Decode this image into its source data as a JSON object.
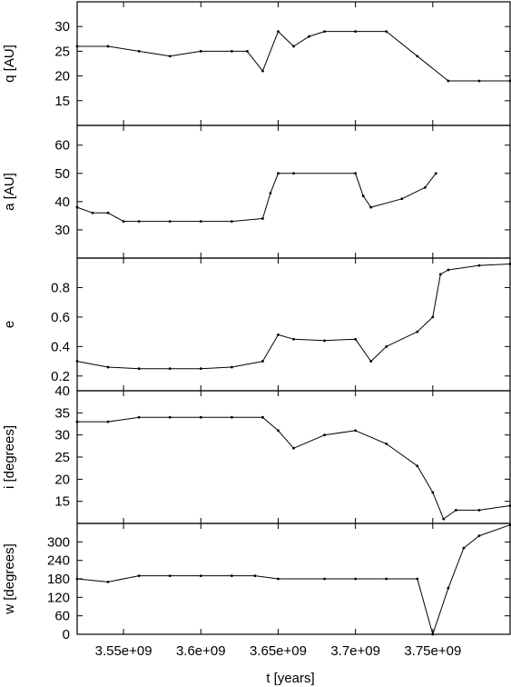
{
  "chart_data": {
    "type": "line",
    "xlabel": "t [years]",
    "xlim": [
      3520000000.0,
      3800000000.0
    ],
    "xticks": [
      3550000000.0,
      3600000000.0,
      3650000000.0,
      3700000000.0,
      3750000000.0
    ],
    "xtick_labels": [
      "3.55e+09",
      "3.6e+09",
      "3.65e+09",
      "3.7e+09",
      "3.75e+09"
    ],
    "panels": [
      {
        "key": "q",
        "ylabel": "q [AU]",
        "ylim": [
          10,
          35
        ],
        "yticks": [
          15,
          20,
          25,
          30
        ],
        "x": [
          3520000000.0,
          3540000000.0,
          3560000000.0,
          3580000000.0,
          3600000000.0,
          3620000000.0,
          3630000000.0,
          3640000000.0,
          3650000000.0,
          3660000000.0,
          3670000000.0,
          3680000000.0,
          3700000000.0,
          3720000000.0,
          3740000000.0,
          3760000000.0,
          3780000000.0,
          3800000000.0
        ],
        "y": [
          26,
          26,
          25,
          24,
          25,
          25,
          25,
          21,
          29,
          26,
          28,
          29,
          29,
          29,
          24,
          19,
          19,
          19
        ]
      },
      {
        "key": "a",
        "ylabel": "a [AU]",
        "ylim": [
          20,
          67
        ],
        "yticks": [
          30,
          40,
          50,
          60
        ],
        "x": [
          3520000000.0,
          3530000000.0,
          3540000000.0,
          3550000000.0,
          3560000000.0,
          3580000000.0,
          3600000000.0,
          3620000000.0,
          3640000000.0,
          3645000000.0,
          3650000000.0,
          3660000000.0,
          3700000000.0,
          3705000000.0,
          3710000000.0,
          3730000000.0,
          3745000000.0,
          3752000000.0
        ],
        "y": [
          38,
          36,
          36,
          33,
          33,
          33,
          33,
          33,
          34,
          43,
          50,
          50,
          50,
          42,
          38,
          41,
          45,
          50
        ]
      },
      {
        "key": "e",
        "ylabel": "e",
        "ylim": [
          0.1,
          1.0
        ],
        "yticks": [
          0.2,
          0.4,
          0.6,
          0.8
        ],
        "x": [
          3520000000.0,
          3540000000.0,
          3560000000.0,
          3580000000.0,
          3600000000.0,
          3620000000.0,
          3640000000.0,
          3650000000.0,
          3660000000.0,
          3680000000.0,
          3700000000.0,
          3710000000.0,
          3720000000.0,
          3740000000.0,
          3750000000.0,
          3755000000.0,
          3760000000.0,
          3780000000.0,
          3800000000.0
        ],
        "y": [
          0.3,
          0.26,
          0.25,
          0.25,
          0.25,
          0.26,
          0.3,
          0.48,
          0.45,
          0.44,
          0.45,
          0.3,
          0.4,
          0.5,
          0.6,
          0.89,
          0.92,
          0.95,
          0.96
        ]
      },
      {
        "key": "i",
        "ylabel": "i [degrees]",
        "ylim": [
          10,
          40
        ],
        "yticks": [
          15,
          20,
          25,
          30,
          35,
          40
        ],
        "x": [
          3520000000.0,
          3540000000.0,
          3560000000.0,
          3580000000.0,
          3600000000.0,
          3620000000.0,
          3640000000.0,
          3650000000.0,
          3660000000.0,
          3680000000.0,
          3700000000.0,
          3720000000.0,
          3740000000.0,
          3750000000.0,
          3757000000.0,
          3765000000.0,
          3780000000.0,
          3800000000.0
        ],
        "y": [
          33,
          33,
          34,
          34,
          34,
          34,
          34,
          31,
          27,
          30,
          31,
          28,
          23,
          17,
          11,
          13,
          13,
          14
        ]
      },
      {
        "key": "w",
        "ylabel": "w [degrees]",
        "ylim": [
          0,
          360
        ],
        "yticks": [
          0,
          60,
          120,
          180,
          240,
          300
        ],
        "x": [
          3520000000.0,
          3540000000.0,
          3560000000.0,
          3580000000.0,
          3600000000.0,
          3620000000.0,
          3635000000.0,
          3650000000.0,
          3680000000.0,
          3700000000.0,
          3720000000.0,
          3740000000.0,
          3750000000.0,
          3760000000.0,
          3770000000.0,
          3780000000.0,
          3800000000.0
        ],
        "y": [
          180,
          170,
          190,
          190,
          190,
          190,
          190,
          180,
          180,
          180,
          180,
          180,
          0,
          150,
          280,
          320,
          355
        ]
      }
    ]
  }
}
